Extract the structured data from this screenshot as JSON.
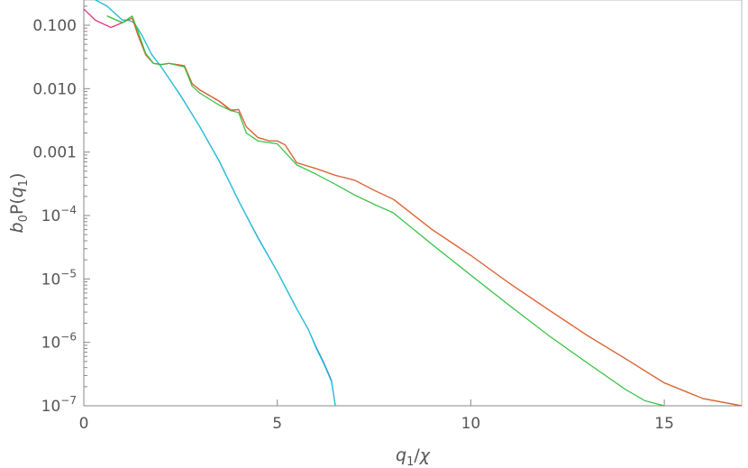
{
  "chart_data": {
    "type": "line",
    "title": "",
    "xlabel": "q₁/χ",
    "ylabel": "b₀P(q₁)",
    "y_scale": "log",
    "xlim": [
      0,
      17
    ],
    "ylim": [
      1e-07,
      0.25
    ],
    "grid": false,
    "x_ticks": [
      {
        "value": 0,
        "label": "0"
      },
      {
        "value": 5,
        "label": "5"
      },
      {
        "value": 10,
        "label": "10"
      },
      {
        "value": 15,
        "label": "15"
      }
    ],
    "y_ticks": [
      {
        "value": 0.1,
        "base": "0.100",
        "exp": ""
      },
      {
        "value": 0.01,
        "base": "0.010",
        "exp": ""
      },
      {
        "value": 0.001,
        "base": "0.001",
        "exp": ""
      },
      {
        "value": 0.0001,
        "base": "10",
        "exp": "−4"
      },
      {
        "value": 1e-05,
        "base": "10",
        "exp": "−5"
      },
      {
        "value": 1e-06,
        "base": "10",
        "exp": "−6"
      },
      {
        "value": 1e-07,
        "base": "10",
        "exp": "−7"
      }
    ],
    "series": [
      {
        "color": "#3050c8",
        "x": [
          0.3,
          0.6,
          1.0,
          1.15,
          1.3,
          1.5,
          1.75,
          2.0,
          2.5,
          3.0,
          3.5,
          4.0,
          4.5,
          5.0,
          5.5,
          5.8,
          6.0,
          6.2,
          6.4,
          6.5
        ],
        "y": [
          0.3,
          0.2,
          0.12,
          0.12,
          0.11,
          0.07,
          0.035,
          0.022,
          0.0078,
          0.0025,
          0.00072,
          0.00017,
          4.5e-05,
          1.3e-05,
          3.4e-06,
          1.6e-06,
          8.5e-07,
          4.8e-07,
          2.5e-07,
          9e-08
        ]
      },
      {
        "color": "#20c8d8",
        "x": [
          0.3,
          0.6,
          1.0,
          1.15,
          1.3,
          1.5,
          1.75,
          2.0,
          2.5,
          3.0,
          3.5,
          4.0,
          4.5,
          5.0,
          5.5,
          5.8,
          6.0,
          6.2,
          6.4,
          6.5
        ],
        "y": [
          0.3,
          0.2,
          0.12,
          0.12,
          0.11,
          0.07,
          0.035,
          0.022,
          0.0077,
          0.0025,
          0.00071,
          0.00017,
          4.4e-05,
          1.3e-05,
          3.4e-06,
          1.6e-06,
          8.2e-07,
          4.6e-07,
          2.4e-07,
          8.5e-08
        ]
      },
      {
        "color": "#e0206a",
        "x": [
          0.0,
          0.3,
          0.7,
          1.0,
          1.25,
          1.4,
          1.6,
          1.8,
          2.0,
          2.2,
          2.6,
          2.8,
          3.0,
          3.5,
          3.8,
          4.0,
          4.2,
          4.5,
          4.8,
          5.0,
          5.2,
          5.5,
          6.0,
          6.5,
          7.0,
          7.5,
          8.0,
          9.0,
          10.0,
          11.0,
          12.0,
          13.0,
          14.0,
          15.0,
          16.0,
          17.0
        ],
        "y": [
          0.18,
          0.12,
          0.092,
          0.11,
          0.13,
          0.07,
          0.034,
          0.025,
          0.024,
          0.025,
          0.023,
          0.012,
          0.0095,
          0.0063,
          0.0045,
          0.0047,
          0.0025,
          0.0017,
          0.0015,
          0.0015,
          0.0013,
          0.00068,
          0.00055,
          0.00043,
          0.00036,
          0.00025,
          0.00018,
          6e-05,
          2.35e-05,
          8.5e-06,
          3.3e-06,
          1.3e-06,
          5.5e-07,
          2.3e-07,
          1.3e-07,
          8e-08
        ]
      },
      {
        "color": "#d86a2a",
        "x": [
          0.6,
          1.0,
          1.25,
          1.4,
          1.6,
          1.8,
          2.0,
          2.2,
          2.6,
          2.8,
          3.0,
          3.5,
          3.8,
          4.0,
          4.2,
          4.5,
          4.8,
          5.0,
          5.2,
          5.5,
          6.0,
          6.5,
          7.0,
          7.5,
          8.0,
          9.0,
          10.0,
          11.0,
          12.0,
          13.0,
          14.0,
          15.0,
          16.0,
          17.0
        ],
        "y": [
          0.14,
          0.11,
          0.13,
          0.07,
          0.034,
          0.025,
          0.024,
          0.025,
          0.023,
          0.012,
          0.0096,
          0.0064,
          0.0046,
          0.0047,
          0.0025,
          0.0017,
          0.0015,
          0.0015,
          0.0013,
          0.00068,
          0.00055,
          0.00043,
          0.00036,
          0.00025,
          0.00018,
          6e-05,
          2.35e-05,
          8.5e-06,
          3.3e-06,
          1.3e-06,
          5.5e-07,
          2.3e-07,
          1.3e-07,
          8e-08
        ]
      },
      {
        "color": "#30c040",
        "x": [
          0.6,
          1.0,
          1.25,
          1.4,
          1.6,
          1.8,
          2.0,
          2.2,
          2.6,
          2.8,
          3.0,
          3.5,
          3.8,
          4.0,
          4.2,
          4.5,
          5.0,
          5.5,
          6.0,
          6.5,
          7.0,
          7.5,
          8.0,
          9.0,
          10.0,
          11.0,
          12.0,
          13.0,
          14.0,
          14.5,
          15.0
        ],
        "y": [
          0.14,
          0.11,
          0.14,
          0.08,
          0.036,
          0.025,
          0.024,
          0.025,
          0.022,
          0.011,
          0.0085,
          0.0055,
          0.0045,
          0.0042,
          0.002,
          0.0015,
          0.00135,
          0.00063,
          0.00045,
          0.00031,
          0.00021,
          0.00015,
          0.00011,
          3.5e-05,
          1.15e-05,
          3.8e-06,
          1.3e-06,
          4.8e-07,
          1.8e-07,
          1.2e-07,
          9e-08
        ]
      }
    ]
  }
}
